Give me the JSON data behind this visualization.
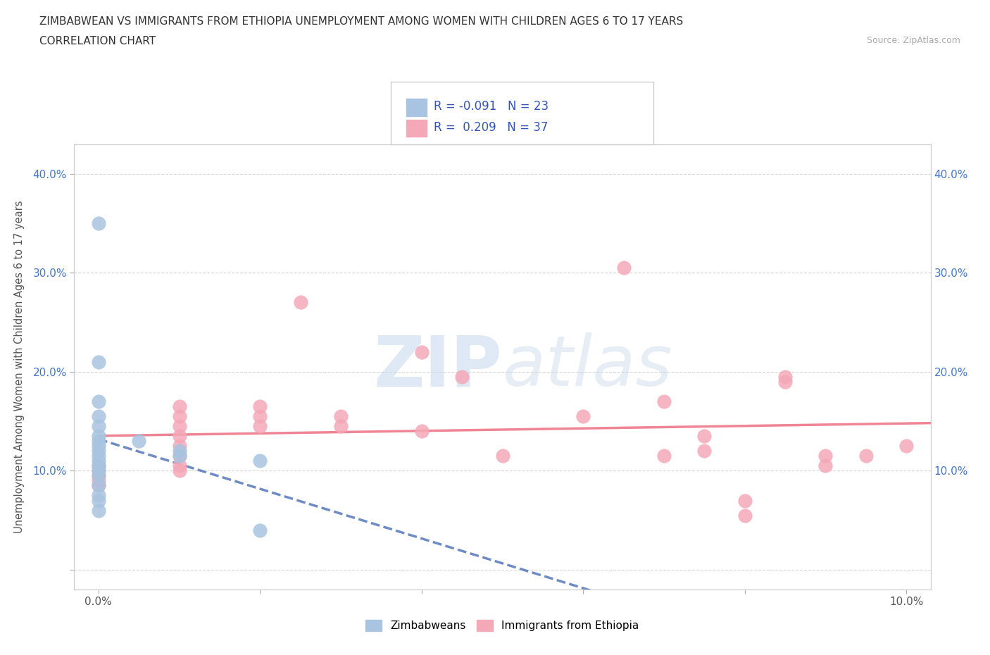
{
  "title_line1": "ZIMBABWEAN VS IMMIGRANTS FROM ETHIOPIA UNEMPLOYMENT AMONG WOMEN WITH CHILDREN AGES 6 TO 17 YEARS",
  "title_line2": "CORRELATION CHART",
  "source": "Source: ZipAtlas.com",
  "ylabel": "Unemployment Among Women with Children Ages 6 to 17 years",
  "zimbabwean_R": "-0.091",
  "zimbabwean_N": "23",
  "ethiopia_R": "0.209",
  "ethiopia_N": "37",
  "blue_color": "#a8c4e0",
  "pink_color": "#f4a8b8",
  "blue_line_color": "#5577bb",
  "pink_line_color": "#ee7788",
  "legend_text_color": "#3355bb",
  "watermark_color": "#d0dff0",
  "zimbabwean_points": [
    [
      0.0,
      0.35
    ],
    [
      0.0,
      0.21
    ],
    [
      0.0,
      0.17
    ],
    [
      0.0,
      0.155
    ],
    [
      0.0,
      0.145
    ],
    [
      0.0,
      0.135
    ],
    [
      0.0,
      0.13
    ],
    [
      0.0,
      0.125
    ],
    [
      0.0,
      0.12
    ],
    [
      0.0,
      0.115
    ],
    [
      0.0,
      0.11
    ],
    [
      0.0,
      0.105
    ],
    [
      0.0,
      0.1
    ],
    [
      0.0,
      0.095
    ],
    [
      0.0,
      0.085
    ],
    [
      0.0,
      0.075
    ],
    [
      0.0,
      0.07
    ],
    [
      0.0,
      0.06
    ],
    [
      0.005,
      0.13
    ],
    [
      0.01,
      0.12
    ],
    [
      0.01,
      0.115
    ],
    [
      0.02,
      0.11
    ],
    [
      0.02,
      0.04
    ]
  ],
  "ethiopia_points": [
    [
      0.0,
      0.105
    ],
    [
      0.0,
      0.1
    ],
    [
      0.0,
      0.095
    ],
    [
      0.0,
      0.09
    ],
    [
      0.0,
      0.085
    ],
    [
      0.01,
      0.165
    ],
    [
      0.01,
      0.155
    ],
    [
      0.01,
      0.145
    ],
    [
      0.01,
      0.135
    ],
    [
      0.01,
      0.125
    ],
    [
      0.01,
      0.115
    ],
    [
      0.01,
      0.105
    ],
    [
      0.01,
      0.1
    ],
    [
      0.02,
      0.165
    ],
    [
      0.02,
      0.155
    ],
    [
      0.02,
      0.145
    ],
    [
      0.025,
      0.27
    ],
    [
      0.03,
      0.155
    ],
    [
      0.03,
      0.145
    ],
    [
      0.04,
      0.22
    ],
    [
      0.04,
      0.14
    ],
    [
      0.045,
      0.195
    ],
    [
      0.05,
      0.115
    ],
    [
      0.06,
      0.155
    ],
    [
      0.065,
      0.305
    ],
    [
      0.07,
      0.17
    ],
    [
      0.07,
      0.115
    ],
    [
      0.075,
      0.135
    ],
    [
      0.075,
      0.12
    ],
    [
      0.08,
      0.07
    ],
    [
      0.08,
      0.055
    ],
    [
      0.085,
      0.195
    ],
    [
      0.085,
      0.19
    ],
    [
      0.09,
      0.115
    ],
    [
      0.09,
      0.105
    ],
    [
      0.095,
      0.115
    ],
    [
      0.1,
      0.125
    ]
  ]
}
